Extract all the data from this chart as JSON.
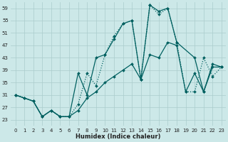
{
  "xlabel": "Humidex (Indice chaleur)",
  "bg_color": "#cce8e8",
  "line_color": "#006060",
  "grid_color": "#aacccc",
  "xlim": [
    -0.5,
    23.5
  ],
  "ylim": [
    21,
    61
  ],
  "yticks": [
    23,
    27,
    31,
    35,
    39,
    43,
    47,
    51,
    55,
    59
  ],
  "xticks": [
    0,
    1,
    2,
    3,
    4,
    5,
    6,
    7,
    8,
    9,
    10,
    11,
    12,
    13,
    14,
    15,
    16,
    17,
    18,
    19,
    20,
    21,
    22,
    23
  ],
  "series1_x": [
    0,
    1,
    2,
    3,
    4,
    5,
    6,
    7,
    8,
    9,
    10,
    11,
    12,
    13,
    14,
    15,
    16,
    17,
    18,
    20,
    21,
    22,
    23
  ],
  "series1_y": [
    31,
    30,
    29,
    24,
    26,
    24,
    24,
    38,
    31,
    43,
    44,
    49,
    54,
    55,
    36,
    60,
    58,
    59,
    48,
    43,
    32,
    41,
    40
  ],
  "series2_x": [
    0,
    2,
    3,
    4,
    5,
    6,
    7,
    8,
    9,
    10,
    11,
    12,
    13,
    14,
    15,
    16,
    17,
    18,
    19,
    20,
    21,
    22,
    23
  ],
  "series2_y": [
    31,
    29,
    24,
    26,
    24,
    24,
    28,
    38,
    34,
    44,
    50,
    54,
    55,
    36,
    60,
    57,
    59,
    48,
    32,
    32,
    43,
    37,
    40
  ],
  "series3_x": [
    0,
    1,
    2,
    3,
    4,
    5,
    6,
    7,
    8,
    9,
    10,
    11,
    12,
    13,
    14,
    15,
    16,
    17,
    18,
    19,
    20,
    21,
    22,
    23
  ],
  "series3_y": [
    31,
    30,
    29,
    24,
    26,
    24,
    24,
    26,
    30,
    32,
    35,
    37,
    39,
    41,
    36,
    44,
    43,
    48,
    47,
    32,
    38,
    32,
    40,
    40
  ],
  "xlabel_fontsize": 6,
  "tick_fontsize": 5
}
